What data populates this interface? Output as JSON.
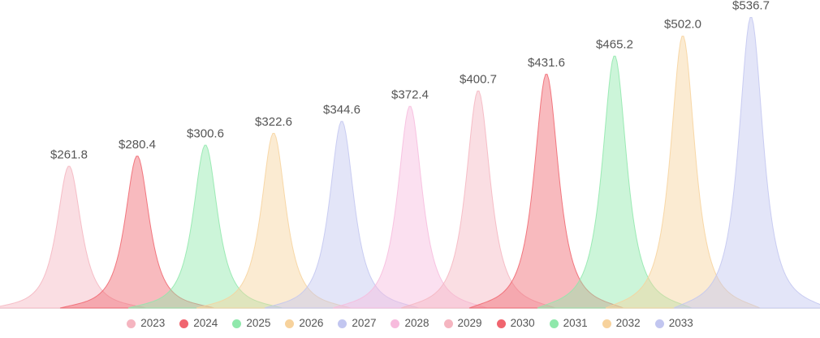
{
  "chart_data": {
    "type": "area",
    "title": "",
    "subtitle": "",
    "xlabel": "",
    "ylabel": "",
    "categories": [
      "2023",
      "2024",
      "2025",
      "2026",
      "2027",
      "2028",
      "2029",
      "2030",
      "2031",
      "2032",
      "2033"
    ],
    "values": [
      261.8,
      280.4,
      300.6,
      322.6,
      344.6,
      372.4,
      400.7,
      431.6,
      465.2,
      502.0,
      536.7
    ],
    "value_labels": [
      "$261.8",
      "$280.4",
      "$300.6",
      "$322.6",
      "$344.6",
      "$372.4",
      "$400.7",
      "$431.6",
      "$465.2",
      "$502.0",
      "$536.7"
    ],
    "colors": [
      "#f5b5c0",
      "#f0656f",
      "#8fe8ab",
      "#f7d29c",
      "#c2c6f0",
      "#f7bbdd",
      "#f5b5c0",
      "#f0656f",
      "#8fe8ab",
      "#f7d29c",
      "#c2c6f0"
    ],
    "legend_position": "bottom",
    "grid": false,
    "ylim": [
      0,
      560
    ],
    "value_prefix": "$"
  },
  "style": {
    "background": "#ffffff",
    "fill_opacity": 0.45,
    "stroke_opacity": 0.85,
    "value_label_color": "#555555",
    "legend_text_color": "#555555",
    "axis_line_color": "#e8e8e8"
  }
}
